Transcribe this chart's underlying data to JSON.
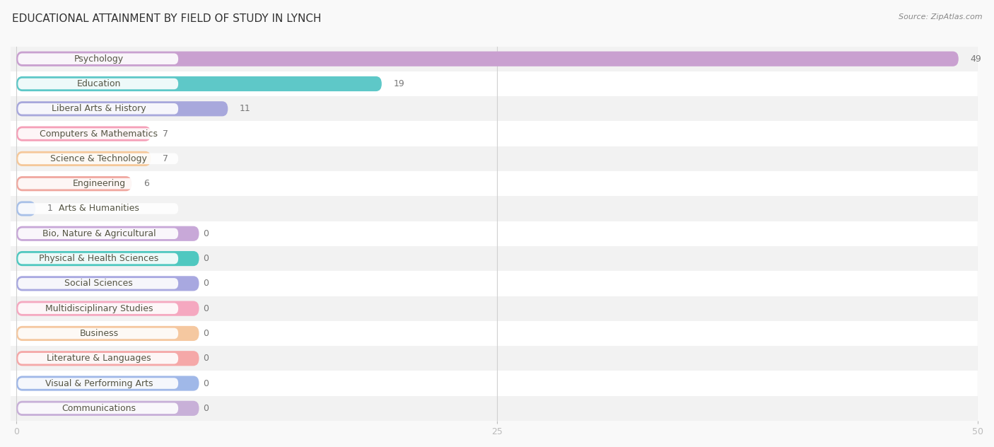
{
  "title": "EDUCATIONAL ATTAINMENT BY FIELD OF STUDY IN LYNCH",
  "source": "Source: ZipAtlas.com",
  "categories": [
    "Psychology",
    "Education",
    "Liberal Arts & History",
    "Computers & Mathematics",
    "Science & Technology",
    "Engineering",
    "Arts & Humanities",
    "Bio, Nature & Agricultural",
    "Physical & Health Sciences",
    "Social Sciences",
    "Multidisciplinary Studies",
    "Business",
    "Literature & Languages",
    "Visual & Performing Arts",
    "Communications"
  ],
  "values": [
    49,
    19,
    11,
    7,
    7,
    6,
    1,
    0,
    0,
    0,
    0,
    0,
    0,
    0,
    0
  ],
  "bar_colors": [
    "#c9a0d0",
    "#5ec8c8",
    "#a8a8dc",
    "#f5a0b8",
    "#f5c89a",
    "#f0a8a0",
    "#a8c0e8",
    "#c8a8d8",
    "#50c8c0",
    "#a8a8e0",
    "#f5a8c0",
    "#f5c8a0",
    "#f5a8a8",
    "#a0b8e8",
    "#c8b0d8"
  ],
  "xlim": [
    0,
    50
  ],
  "xticks": [
    0,
    25,
    50
  ],
  "background_color": "#f9f9f9",
  "row_bg_even": "#f2f2f2",
  "row_bg_odd": "#ffffff",
  "title_fontsize": 11,
  "source_fontsize": 8,
  "bar_label_fontsize": 9,
  "axis_label_fontsize": 9,
  "category_fontsize": 9
}
